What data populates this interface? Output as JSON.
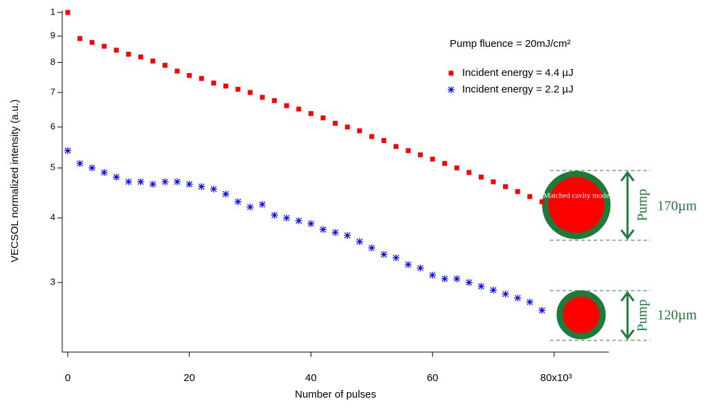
{
  "chart_data": {
    "type": "scatter",
    "y_log_scale": true,
    "x_label": "Number of pulses",
    "y_label": "VECSOL normalized intensity (a.u.)",
    "xlim": [
      -0.9,
      89
    ],
    "xticks": [
      0,
      20,
      40,
      60,
      {
        "value": 80,
        "label": "80x10³"
      }
    ],
    "ylim": [
      0.22,
      1
    ],
    "yticks": [
      {
        "value": 0.3,
        "label": "3"
      },
      {
        "value": 0.4,
        "label": "4"
      },
      {
        "value": 0.5,
        "label": "5"
      },
      {
        "value": 0.6,
        "label": "6"
      },
      {
        "value": 0.7,
        "label": "7"
      },
      {
        "value": 0.8,
        "label": "8"
      },
      {
        "value": 0.9,
        "label": "9"
      },
      1
    ],
    "legend_position": "upper right",
    "legend_title": "Pump fluence = 20mJ/cm²",
    "x": [
      0,
      2,
      4,
      6,
      8,
      10,
      12,
      14,
      16,
      18,
      20,
      22,
      24,
      26,
      28,
      30,
      32,
      34,
      36,
      38,
      40,
      42,
      44,
      46,
      48,
      50,
      52,
      54,
      56,
      58,
      60,
      62,
      64,
      66,
      68,
      70,
      72,
      74,
      76,
      78
    ],
    "series": [
      {
        "name": "Incident energy = 4.4 µJ",
        "color": "#ff0000",
        "marker": "square",
        "values": [
          1.0,
          0.89,
          0.875,
          0.86,
          0.845,
          0.83,
          0.82,
          0.805,
          0.79,
          0.77,
          0.755,
          0.745,
          0.73,
          0.72,
          0.71,
          0.7,
          0.685,
          0.675,
          0.66,
          0.65,
          0.637,
          0.625,
          0.61,
          0.6,
          0.59,
          0.575,
          0.565,
          0.55,
          0.54,
          0.53,
          0.52,
          0.51,
          0.5,
          0.49,
          0.48,
          0.47,
          0.46,
          0.45,
          0.44,
          0.43
        ]
      },
      {
        "name": "Incident energy = 2.2 µJ",
        "color": "#0000ff",
        "marker": "asterisk",
        "values": [
          0.54,
          0.51,
          0.5,
          0.49,
          0.48,
          0.47,
          0.47,
          0.465,
          0.47,
          0.47,
          0.465,
          0.46,
          0.455,
          0.445,
          0.43,
          0.42,
          0.425,
          0.405,
          0.4,
          0.395,
          0.39,
          0.38,
          0.375,
          0.37,
          0.36,
          0.35,
          0.34,
          0.335,
          0.325,
          0.32,
          0.31,
          0.305,
          0.305,
          0.3,
          0.295,
          0.29,
          0.285,
          0.28,
          0.275,
          0.265
        ]
      }
    ],
    "annotations": {
      "mode_label": "Matched cavity mode",
      "pump_label": "Pump",
      "large_size": "170µm",
      "small_size": "120µm"
    }
  }
}
